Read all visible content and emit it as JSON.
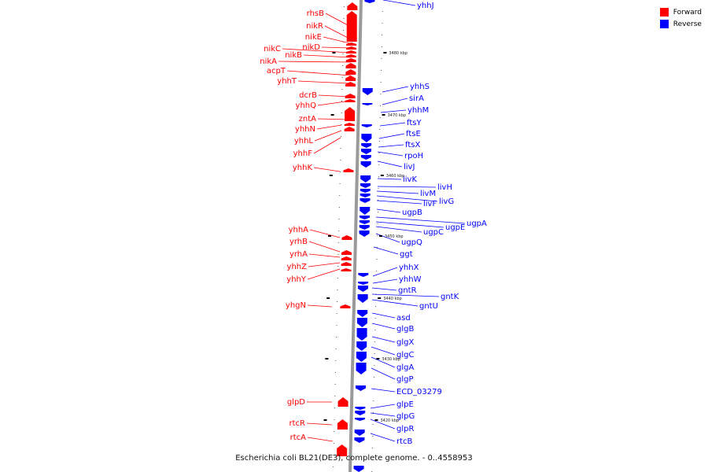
{
  "caption": "Escherichia coli BL21(DE3), complete genome. - 0..4558953",
  "legend": [
    {
      "label": "Forward",
      "color": "#ff0000"
    },
    {
      "label": "Reverse",
      "color": "#0000ff"
    }
  ],
  "kbp_labels": [
    "3480 kbp",
    "3470 kbp",
    "3460 kbp",
    "3450 kbp",
    "3440 kbp",
    "3430 kbp",
    "3420 kbp"
  ],
  "forward_genes": [
    "rhsB",
    "nikR",
    "nikE",
    "nikD",
    "nikC",
    "nikB",
    "nikA",
    "acpT",
    "yhhT",
    "dcrB",
    "yhhQ",
    "zntA",
    "yhhN",
    "yhhL",
    "yhhF",
    "yhhK",
    "yhhA",
    "yrhB",
    "yrhA",
    "yhhZ",
    "yhhY",
    "yhgN",
    "glpD",
    "rtcR",
    "rtcA"
  ],
  "reverse_genes": [
    "yhhJ",
    "yhhS",
    "sirA",
    "yhhM",
    "ftsY",
    "ftsE",
    "ftsX",
    "rpoH",
    "livJ",
    "livK",
    "livH",
    "livM",
    "livG",
    "livF",
    "ugpB",
    "ugpA",
    "ugpE",
    "ugpC",
    "ugpQ",
    "ggt",
    "yhhX",
    "yhhW",
    "gntR",
    "gntK",
    "gntU",
    "asd",
    "glgB",
    "glgX",
    "glgC",
    "glgA",
    "glgP",
    "ECD_03279",
    "glpE",
    "glpG",
    "glpR",
    "rtcB"
  ]
}
